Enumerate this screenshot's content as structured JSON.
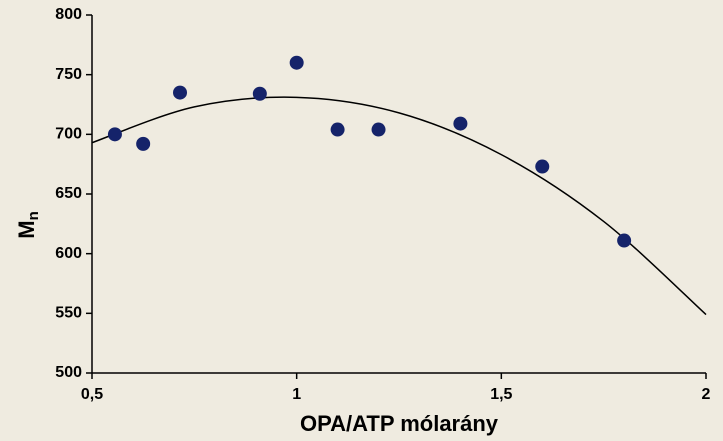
{
  "chart_data": {
    "type": "scatter",
    "x_label": "OPA/ATP mólarány",
    "y_label": {
      "main": "M",
      "sub": "n"
    },
    "series": [
      {
        "color": "#15236a",
        "x": [
          0.556,
          0.625,
          0.715,
          0.91,
          1.0,
          1.1,
          1.2,
          1.4,
          1.6,
          1.8
        ],
        "values": [
          700,
          692,
          735,
          734,
          760,
          704,
          704,
          709,
          673,
          611
        ]
      }
    ],
    "trendline": {
      "color": "#000000",
      "x": [
        0.5,
        0.75,
        1.0,
        1.25,
        1.5,
        1.75,
        2.0
      ],
      "values": [
        693,
        723,
        731,
        718,
        683,
        627,
        549
      ]
    },
    "xlim": [
      0.5,
      2
    ],
    "xticks": [
      {
        "value": 0.5,
        "label": "0,5"
      },
      1,
      {
        "value": 1.5,
        "label": "1,5"
      },
      2
    ],
    "ylim": [
      500,
      800
    ],
    "yticks": [
      500,
      550,
      600,
      650,
      700,
      750,
      800
    ],
    "grid": false
  }
}
